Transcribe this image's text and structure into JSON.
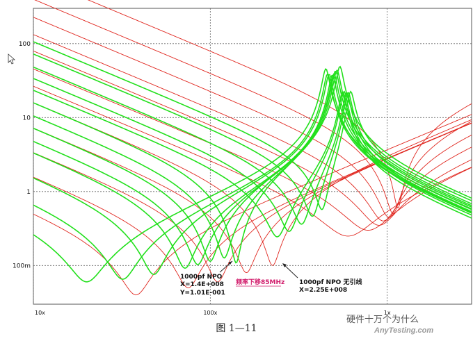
{
  "chart_data": {
    "type": "line",
    "title": "",
    "xlabel": "",
    "ylabel": "",
    "x_scale": "log",
    "y_scale": "log",
    "xlim": [
      10000000,
      3000000000
    ],
    "ylim": [
      0.03,
      300
    ],
    "x_ticks": [
      {
        "value": 10000000,
        "label": "10x"
      },
      {
        "value": 100000000,
        "label": "100x"
      },
      {
        "value": 1000000000,
        "label": "1x"
      }
    ],
    "y_ticks": [
      {
        "value": 0.1,
        "label": "100m"
      },
      {
        "value": 1,
        "label": "1"
      },
      {
        "value": 10,
        "label": "10"
      },
      {
        "value": 100,
        "label": "100"
      }
    ],
    "grid": true,
    "series_colors": {
      "red": "#e0261e",
      "green": "#22e01c"
    },
    "red_family": [
      {
        "capacitance_F": 2e-11,
        "srf_Hz": 1150000000,
        "esr_ohm": 0.6
      },
      {
        "capacitance_F": 4e-11,
        "srf_Hz": 1080000000,
        "esr_ohm": 0.5
      },
      {
        "capacitance_F": 7e-11,
        "srf_Hz": 1020000000,
        "esr_ohm": 0.45
      },
      {
        "capacitance_F": 1.2e-10,
        "srf_Hz": 950000000,
        "esr_ohm": 0.4
      },
      {
        "capacitance_F": 2e-10,
        "srf_Hz": 900000000,
        "esr_ohm": 0.35
      },
      {
        "capacitance_F": 3.5e-10,
        "srf_Hz": 780000000,
        "esr_ohm": 0.3
      },
      {
        "capacitance_F": 6e-10,
        "srf_Hz": 600000000,
        "esr_ohm": 0.25
      },
      {
        "capacitance_F": 1e-09,
        "srf_Hz": 225000000,
        "esr_ohm": 0.1
      },
      {
        "capacitance_F": 2.2e-09,
        "srf_Hz": 160000000,
        "esr_ohm": 0.08
      },
      {
        "capacitance_F": 4.7e-09,
        "srf_Hz": 110000000,
        "esr_ohm": 0.06
      },
      {
        "capacitance_F": 1e-08,
        "srf_Hz": 75000000,
        "esr_ohm": 0.05
      },
      {
        "capacitance_F": 3e-08,
        "srf_Hz": 38000000,
        "esr_ohm": 0.04
      }
    ],
    "green_family": [
      {
        "capacitance_F": 1.5e-10,
        "srf_Hz": 430000000,
        "esr_ohm": 0.3,
        "parallel_res_Hz": 620000000
      },
      {
        "capacitance_F": 2.2e-10,
        "srf_Hz": 380000000,
        "esr_ohm": 0.28,
        "parallel_res_Hz": 600000000
      },
      {
        "capacitance_F": 3.3e-10,
        "srf_Hz": 330000000,
        "esr_ohm": 0.25,
        "parallel_res_Hz": 590000000
      },
      {
        "capacitance_F": 4.7e-10,
        "srf_Hz": 280000000,
        "esr_ohm": 0.22,
        "parallel_res_Hz": 570000000
      },
      {
        "capacitance_F": 6.8e-10,
        "srf_Hz": 240000000,
        "esr_ohm": 0.2,
        "parallel_res_Hz": 560000000
      },
      {
        "capacitance_F": 1e-09,
        "srf_Hz": 140000000,
        "esr_ohm": 0.101,
        "parallel_res_Hz": 540000000
      },
      {
        "capacitance_F": 1.5e-09,
        "srf_Hz": 120000000,
        "esr_ohm": 0.12,
        "parallel_res_Hz": 520000000
      },
      {
        "capacitance_F": 2.2e-09,
        "srf_Hz": 100000000,
        "esr_ohm": 0.11,
        "parallel_res_Hz": 510000000
      },
      {
        "capacitance_F": 3.3e-09,
        "srf_Hz": 85000000,
        "esr_ohm": 0.1,
        "parallel_res_Hz": 500000000
      },
      {
        "capacitance_F": 4.7e-09,
        "srf_Hz": 72000000,
        "esr_ohm": 0.09,
        "parallel_res_Hz": 490000000
      },
      {
        "capacitance_F": 1e-08,
        "srf_Hz": 48000000,
        "esr_ohm": 0.075,
        "parallel_res_Hz": 470000000
      },
      {
        "capacitance_F": 2.2e-08,
        "srf_Hz": 32000000,
        "esr_ohm": 0.065,
        "parallel_res_Hz": 460000000
      },
      {
        "capacitance_F": 4.7e-08,
        "srf_Hz": 20000000,
        "esr_ohm": 0.06,
        "parallel_res_Hz": 450000000
      }
    ],
    "annotations": [
      {
        "lines": [
          "1000pf NPO",
          "X=1.4E+008",
          "Y=1.01E-001"
        ]
      },
      {
        "text": "频率下移85MHz",
        "color": "#d11a6a"
      },
      {
        "lines": [
          "1000pf NPO 无引线",
          "X=2.25E+008"
        ]
      }
    ]
  },
  "caption": "图 1—11",
  "watermark": {
    "wechat": "硬件十万个为什么",
    "site": "AnyTesting.com"
  }
}
